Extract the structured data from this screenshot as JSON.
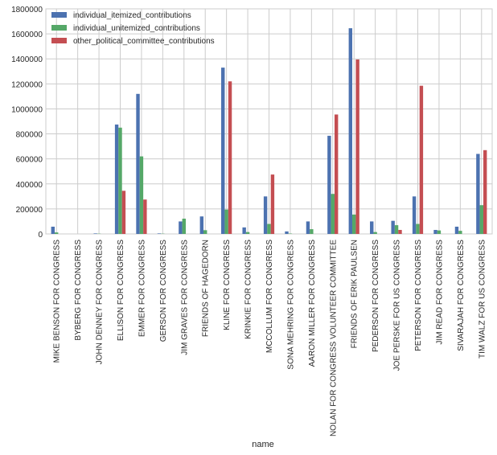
{
  "chart_data": {
    "type": "bar",
    "title": "",
    "xlabel": "name",
    "ylabel": "",
    "ylim": [
      0,
      1800000
    ],
    "yticks": [
      0,
      200000,
      400000,
      600000,
      800000,
      1000000,
      1200000,
      1400000,
      1600000,
      1800000
    ],
    "grid": true,
    "legend_position": "top-left",
    "categories": [
      "MIKE BENSON FOR CONGRESS",
      "BYBERG FOR CONGRESS",
      "JOHN DENNEY FOR CONGRESS",
      "ELLISON FOR CONGRESS",
      "EMMER FOR CONGRESS",
      "GERSON FOR CONGRESS",
      "JIM GRAVES FOR CONGRESS",
      "FRIENDS OF HAGEDORN",
      "KLINE FOR CONGRESS",
      "KRINKIE FOR CONGRESS",
      "MCCOLLUM FOR CONGRESS",
      "SONA MEHRING FOR CONGRESS",
      "AARON MILLER FOR CONGRESS",
      "NOLAN FOR CONGRESS VOLUNTEER COMMITTEE",
      "FRIENDS OF ERIK PAULSEN",
      "PEDERSON FOR CONGRESS",
      "JOE PERSKE FOR US CONGRESS",
      "PETERSON FOR CONGRESS",
      "JIM READ FOR CONGRESS",
      "SIVARAJAH FOR CONGRESS",
      "TIM WALZ FOR US CONGRESS"
    ],
    "series": [
      {
        "name": "individual_itemized_contributions",
        "color": "#4c72b0",
        "values": [
          58000,
          0,
          4000,
          875000,
          1120000,
          4000,
          100000,
          140000,
          1330000,
          52000,
          300000,
          20000,
          100000,
          785000,
          1645000,
          100000,
          105000,
          300000,
          32000,
          58000,
          640000
        ]
      },
      {
        "name": "individual_unitemized_contributions",
        "color": "#55a868",
        "values": [
          12000,
          0,
          2000,
          850000,
          620000,
          2000,
          122000,
          30000,
          195000,
          15000,
          80000,
          3000,
          38000,
          320000,
          155000,
          15000,
          70000,
          80000,
          28000,
          25000,
          230000
        ]
      },
      {
        "name": "other_political_committee_contributions",
        "color": "#c44e52",
        "values": [
          0,
          0,
          0,
          345000,
          275000,
          0,
          0,
          0,
          1220000,
          0,
          475000,
          0,
          0,
          955000,
          1395000,
          0,
          32000,
          1185000,
          0,
          0,
          670000
        ]
      }
    ]
  }
}
